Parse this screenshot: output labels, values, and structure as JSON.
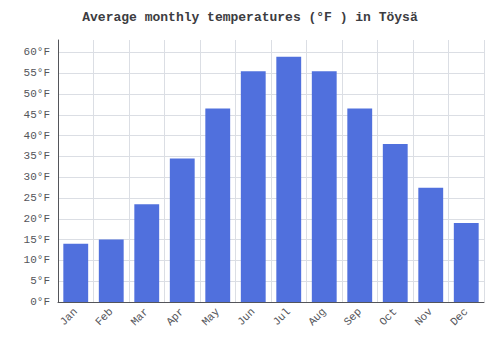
{
  "chart_data": {
    "type": "bar",
    "title": "Average monthly temperatures (°F ) in Töysä",
    "categories": [
      "Jan",
      "Feb",
      "Mar",
      "Apr",
      "May",
      "Jun",
      "Jul",
      "Aug",
      "Sep",
      "Oct",
      "Nov",
      "Dec"
    ],
    "values": [
      14.0,
      15.0,
      23.5,
      34.5,
      46.5,
      55.5,
      59.0,
      55.5,
      46.5,
      38.0,
      27.5,
      19.0
    ],
    "ylim": [
      0,
      63
    ],
    "yticks": [
      {
        "value": 0,
        "label": "0°F"
      },
      {
        "value": 5,
        "label": "5°F"
      },
      {
        "value": 10,
        "label": "10°F"
      },
      {
        "value": 15,
        "label": "15°F"
      },
      {
        "value": 20,
        "label": "20°F"
      },
      {
        "value": 25,
        "label": "25°F"
      },
      {
        "value": 30,
        "label": "30°F"
      },
      {
        "value": 35,
        "label": "35°F"
      },
      {
        "value": 40,
        "label": "40°F"
      },
      {
        "value": 45,
        "label": "45°F"
      },
      {
        "value": 50,
        "label": "50°F"
      },
      {
        "value": 55,
        "label": "55°F"
      },
      {
        "value": 60,
        "label": "60°F"
      }
    ],
    "grid": true
  }
}
